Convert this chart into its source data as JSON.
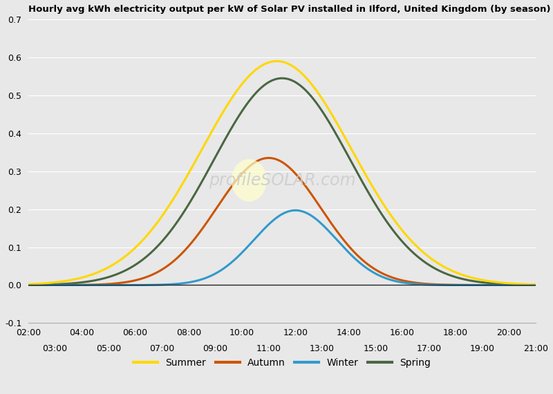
{
  "title": "Hourly avg kWh electricity output per kW of Solar PV installed in Ilford, United Kingdom (by season)",
  "ylim": [
    -0.1,
    0.7
  ],
  "yticks": [
    -0.1,
    0.0,
    0.1,
    0.2,
    0.3,
    0.4,
    0.5,
    0.6,
    0.7
  ],
  "background_color": "#e8e8e8",
  "plot_bg_color": "#e8e8e8",
  "seasons": {
    "Summer": {
      "color": "#FFD700",
      "peak": 0.59,
      "peak_hour": 11.3,
      "sigma": 2.8
    },
    "Spring": {
      "color": "#4a6741",
      "peak": 0.545,
      "peak_hour": 11.5,
      "sigma": 2.55
    },
    "Autumn": {
      "color": "#cc5500",
      "peak": 0.335,
      "peak_hour": 11.0,
      "sigma": 1.95
    },
    "Winter": {
      "color": "#3399cc",
      "peak": 0.197,
      "peak_hour": 12.0,
      "sigma": 1.55
    }
  },
  "legend_order": [
    "Summer",
    "Autumn",
    "Winter",
    "Spring"
  ],
  "xticks_even_vals": [
    2,
    4,
    6,
    8,
    10,
    12,
    14,
    16,
    18,
    20
  ],
  "xticks_even_labels": [
    "02:00",
    "04:00",
    "06:00",
    "08:00",
    "10:00",
    "12:00",
    "14:00",
    "16:00",
    "18:00",
    "20:00"
  ],
  "xticks_odd_vals": [
    3,
    5,
    7,
    9,
    11,
    13,
    15,
    17,
    19,
    21
  ],
  "xticks_odd_labels": [
    "03:00",
    "05:00",
    "07:00",
    "09:00",
    "11:00",
    "13:00",
    "15:00",
    "17:00",
    "19:00",
    "21:00"
  ],
  "line_width": 2.2,
  "xlim": [
    2,
    21
  ],
  "watermark_text": "profileSOLAR.com",
  "watermark_color": "#cccccc",
  "grid_color": "#ffffff",
  "zero_line_color": "#222222"
}
